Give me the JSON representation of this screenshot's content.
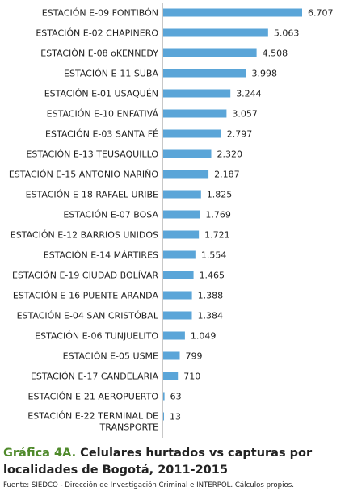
{
  "chart_data": {
    "type": "bar",
    "orientation": "horizontal",
    "categories": [
      [
        "ESTACIÓN E-09 FONTIBÓN"
      ],
      [
        "ESTACIÓN E-02 CHAPINERO"
      ],
      [
        "ESTACIÓN E-08 oKENNEDY"
      ],
      [
        "ESTACIÓN E-11 SUBA"
      ],
      [
        "ESTACIÓN E-01 USAQUÉN"
      ],
      [
        "ESTACIÓN E-10 ENFATIVÁ"
      ],
      [
        "ESTACIÓN E-03 SANTA FÉ"
      ],
      [
        "ESTACIÓN E-13 TEUSAQUILLO"
      ],
      [
        "ESTACIÓN E-15 ANTONIO NARIÑO"
      ],
      [
        "ESTACIÓN E-18 RAFAEL URIBE"
      ],
      [
        "ESTACIÓN E-07 BOSA"
      ],
      [
        "ESTACIÓN E-12 BARRIOS UNIDOS"
      ],
      [
        "ESTACIÓN E-14 MÁRTIRES"
      ],
      [
        "ESTACIÓN E-19 CIUDAD BOLÍVAR"
      ],
      [
        "ESTACIÓN E-16 PUENTE ARANDA"
      ],
      [
        "ESTACIÓN E-04 SAN CRISTÓBAL"
      ],
      [
        "ESTACIÓN E-06 TUNJUELITO"
      ],
      [
        "ESTACIÓN E-05 USME"
      ],
      [
        "ESTACIÓN E-17 CANDELARIA"
      ],
      [
        "ESTACIÓN E-21 AEROPUERTO"
      ],
      [
        "ESTACIÓN E-22 TERMINAL DE",
        "TRANSPORTE"
      ]
    ],
    "values": [
      6707,
      5063,
      4508,
      3998,
      3244,
      3057,
      2797,
      2320,
      2187,
      1825,
      1769,
      1721,
      1554,
      1465,
      1388,
      1384,
      1049,
      799,
      710,
      63,
      13
    ],
    "value_labels": [
      "6.707",
      "5.063",
      "4.508",
      "3.998",
      "3.244",
      "3.057",
      "2.797",
      "2.320",
      "2.187",
      "1.825",
      "1.769",
      "1.721",
      "1.554",
      "1.465",
      "1.388",
      "1.384",
      "1.049",
      "799",
      "710",
      "63",
      "13"
    ],
    "xlim": [
      0,
      6707
    ],
    "grid": false,
    "bar_color": "#5aa5d8",
    "title_prefix": "Gráfica 4A.",
    "title": "Celulares hurtados vs capturas por localidades de Bogotá, 2011-2015",
    "source": "Fuente: SIEDCO - Dirección de Investigación Criminal e INTERPOL. Cálculos propios.",
    "title_color": "#4f8a2b"
  }
}
